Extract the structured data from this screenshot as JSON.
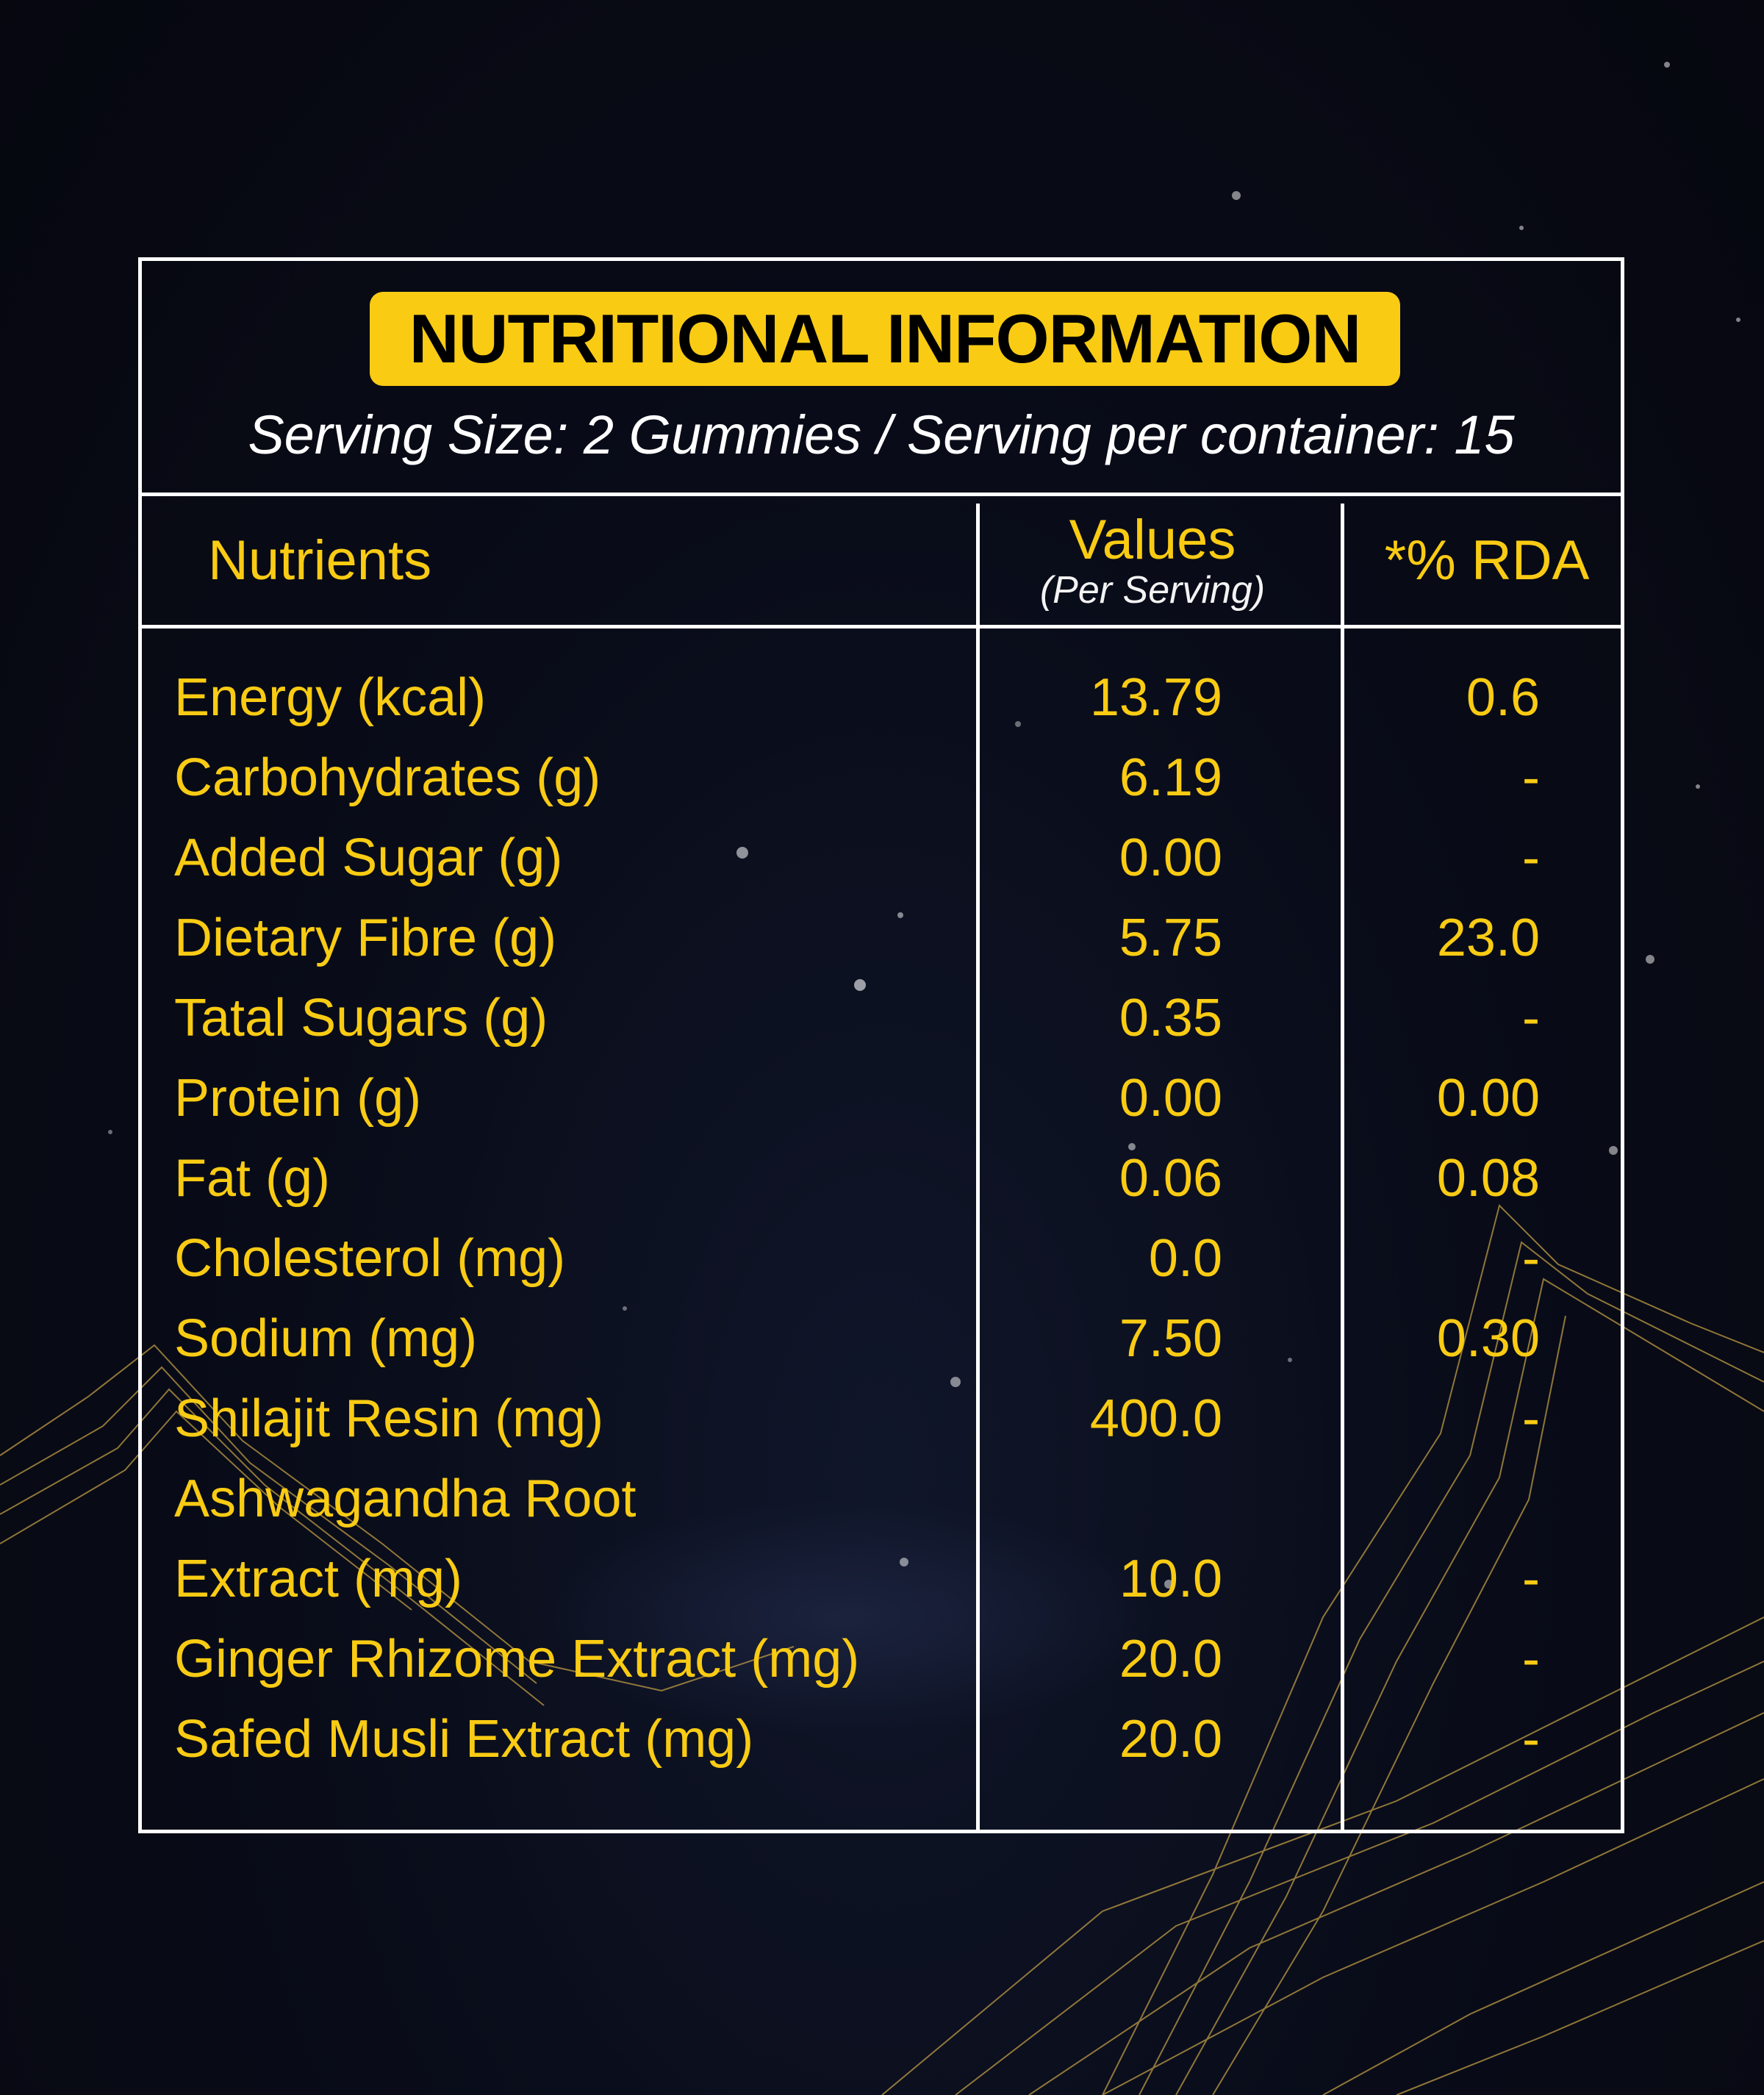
{
  "title": "NUTRITIONAL INFORMATION",
  "serving_info": "Serving Size: 2 Gummies / Serving per container: 15",
  "columns": {
    "nutrients": "Nutrients",
    "values": "Values",
    "values_sub": "(Per Serving)",
    "rda": "*% RDA"
  },
  "rows": [
    {
      "name": "Energy (kcal)",
      "value": "13.79",
      "rda": "0.6"
    },
    {
      "name": "Carbohydrates (g)",
      "value": "6.19",
      "rda": "-"
    },
    {
      "name": "Added Sugar (g)",
      "value": "0.00",
      "rda": "-"
    },
    {
      "name": "Dietary Fibre (g)",
      "value": "5.75",
      "rda": "23.0"
    },
    {
      "name": "Tatal Sugars (g)",
      "value": "0.35",
      "rda": "-"
    },
    {
      "name": "Protein (g)",
      "value": "0.00",
      "rda": "0.00"
    },
    {
      "name": "Fat (g)",
      "value": "0.06",
      "rda": "0.08"
    },
    {
      "name": "Cholesterol (mg)",
      "value": "0.0",
      "rda": "-"
    },
    {
      "name": "Sodium (mg)",
      "value": "7.50",
      "rda": "0.30"
    },
    {
      "name": "Shilajit Resin (mg)",
      "value": "400.0",
      "rda": "-"
    },
    {
      "name": "Ashwagandha Root",
      "value": "",
      "rda": ""
    },
    {
      "name": "Extract (mg)",
      "value": "10.0",
      "rda": "-"
    },
    {
      "name": "Ginger Rhizome Extract (mg)",
      "value": "20.0",
      "rda": "-"
    },
    {
      "name": "Safed Musli Extract (mg)",
      "value": "20.0",
      "rda": "-"
    }
  ],
  "colors": {
    "accent": "#f9cb13",
    "background": "#090c19",
    "border": "#ffffff"
  }
}
